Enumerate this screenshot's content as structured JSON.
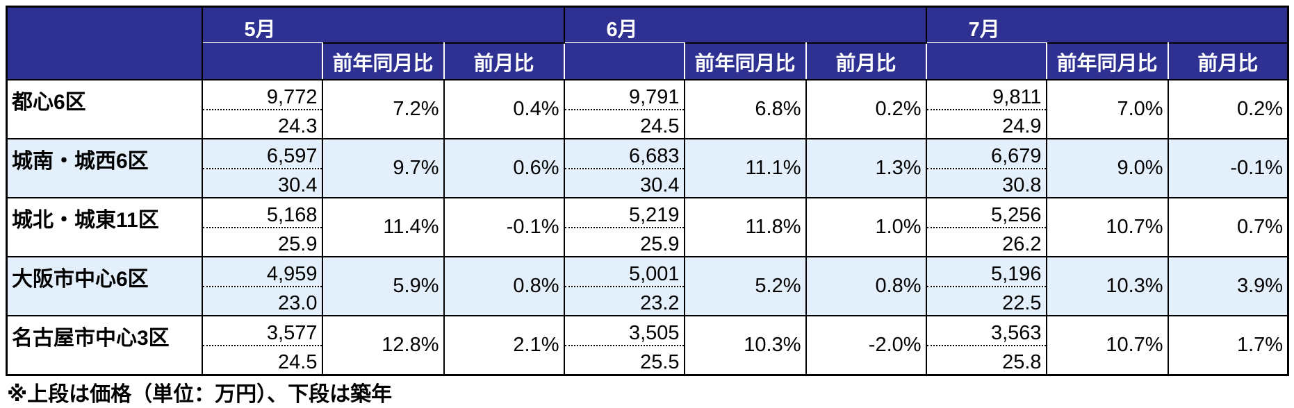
{
  "header": {
    "months": [
      {
        "label": "5月",
        "sub": [
          "前年同月比",
          "前月比"
        ]
      },
      {
        "label": "6月",
        "sub": [
          "前年同月比",
          "前月比"
        ]
      },
      {
        "label": "7月",
        "sub": [
          "前年同月比",
          "前月比"
        ]
      }
    ]
  },
  "table": {
    "rows": [
      {
        "name": "都心6区",
        "months": [
          {
            "price": "9,772",
            "age": "24.3",
            "yoy": "7.2%",
            "mom": "0.4%"
          },
          {
            "price": "9,791",
            "age": "24.5",
            "yoy": "6.8%",
            "mom": "0.2%"
          },
          {
            "price": "9,811",
            "age": "24.9",
            "yoy": "7.0%",
            "mom": "0.2%"
          }
        ]
      },
      {
        "name": "城南・城西6区",
        "months": [
          {
            "price": "6,597",
            "age": "30.4",
            "yoy": "9.7%",
            "mom": "0.6%"
          },
          {
            "price": "6,683",
            "age": "30.4",
            "yoy": "11.1%",
            "mom": "1.3%"
          },
          {
            "price": "6,679",
            "age": "30.8",
            "yoy": "9.0%",
            "mom": "-0.1%"
          }
        ]
      },
      {
        "name": "城北・城東11区",
        "months": [
          {
            "price": "5,168",
            "age": "25.9",
            "yoy": "11.4%",
            "mom": "-0.1%"
          },
          {
            "price": "5,219",
            "age": "25.9",
            "yoy": "11.8%",
            "mom": "1.0%"
          },
          {
            "price": "5,256",
            "age": "26.2",
            "yoy": "10.7%",
            "mom": "0.7%"
          }
        ]
      },
      {
        "name": "大阪市中心6区",
        "months": [
          {
            "price": "4,959",
            "age": "23.0",
            "yoy": "5.9%",
            "mom": "0.8%"
          },
          {
            "price": "5,001",
            "age": "23.2",
            "yoy": "5.2%",
            "mom": "0.8%"
          },
          {
            "price": "5,196",
            "age": "22.5",
            "yoy": "10.3%",
            "mom": "3.9%"
          }
        ]
      },
      {
        "name": "名古屋市中心3区",
        "months": [
          {
            "price": "3,577",
            "age": "24.5",
            "yoy": "12.8%",
            "mom": "2.1%"
          },
          {
            "price": "3,505",
            "age": "25.5",
            "yoy": "10.3%",
            "mom": "-2.0%"
          },
          {
            "price": "3,563",
            "age": "25.8",
            "yoy": "10.7%",
            "mom": "1.7%"
          }
        ]
      }
    ]
  },
  "note": "※上段は価格（単位：万円）、下段は築年"
}
